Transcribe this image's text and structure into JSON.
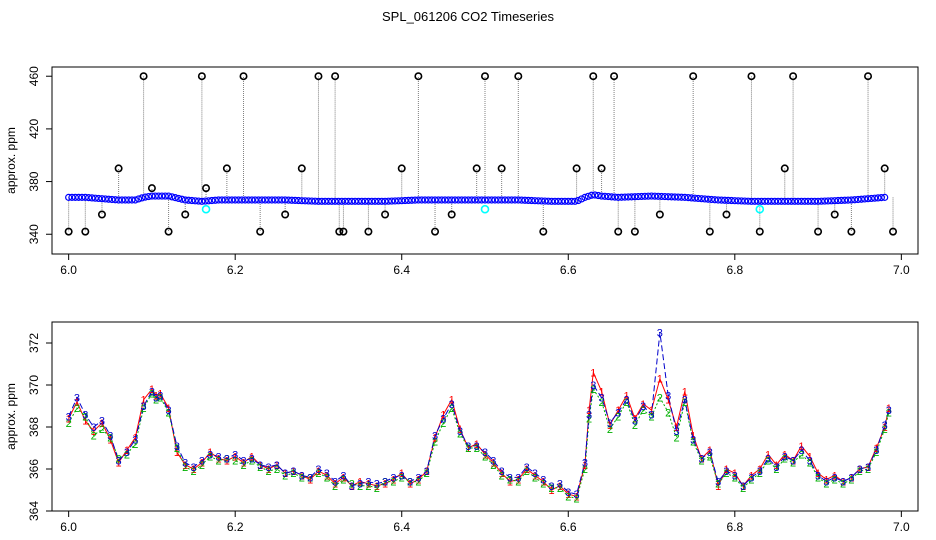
{
  "figure_title": "SPL_061206  CO2 Timeseries",
  "chart_data": [
    {
      "type": "scatter",
      "title": "",
      "xlabel": "",
      "ylabel": "approx. ppm",
      "xlim": [
        5.98,
        7.02
      ],
      "ylim": [
        325,
        467
      ],
      "xticks": [
        "6.0",
        "6.2",
        "6.4",
        "6.6",
        "6.8",
        "7.0"
      ],
      "yticks": [
        "340",
        "380",
        "420",
        "460"
      ],
      "grid": false,
      "colors": {
        "baseline": "#0000ff",
        "outliers": "#000000",
        "flag": "#00ffff",
        "spikes": "#808080"
      },
      "baseline": {
        "x": [
          6.0,
          6.02,
          6.04,
          6.06,
          6.08,
          6.09,
          6.1,
          6.12,
          6.14,
          6.16,
          6.18,
          6.2,
          6.22,
          6.26,
          6.3,
          6.34,
          6.38,
          6.42,
          6.46,
          6.5,
          6.54,
          6.58,
          6.61,
          6.62,
          6.63,
          6.64,
          6.66,
          6.7,
          6.74,
          6.78,
          6.82,
          6.86,
          6.9,
          6.94,
          6.98
        ],
        "y": [
          368,
          368,
          367,
          366,
          366,
          368,
          369,
          369,
          366,
          365,
          366,
          366,
          366,
          366,
          365,
          365,
          365,
          366,
          366,
          366,
          366,
          365,
          365,
          368,
          370,
          369,
          368,
          369,
          368,
          366,
          365,
          365,
          365,
          366,
          368
        ]
      },
      "outliers": {
        "x": [
          6.0,
          6.02,
          6.04,
          6.06,
          6.09,
          6.1,
          6.12,
          6.14,
          6.16,
          6.165,
          6.19,
          6.21,
          6.23,
          6.26,
          6.28,
          6.3,
          6.32,
          6.325,
          6.33,
          6.36,
          6.38,
          6.4,
          6.42,
          6.44,
          6.46,
          6.49,
          6.5,
          6.52,
          6.54,
          6.57,
          6.61,
          6.63,
          6.64,
          6.655,
          6.66,
          6.68,
          6.71,
          6.75,
          6.77,
          6.79,
          6.82,
          6.83,
          6.86,
          6.87,
          6.9,
          6.92,
          6.94,
          6.96,
          6.98,
          6.99
        ],
        "y": [
          342,
          342,
          355,
          390,
          460,
          375,
          342,
          355,
          460,
          375,
          390,
          460,
          342,
          355,
          390,
          460,
          460,
          342,
          342,
          342,
          355,
          390,
          460,
          342,
          355,
          390,
          460,
          390,
          460,
          342,
          390,
          460,
          390,
          460,
          342,
          342,
          355,
          460,
          342,
          355,
          460,
          342,
          390,
          460,
          342,
          355,
          342,
          460,
          390,
          342
        ]
      },
      "flags": {
        "x": [
          6.165,
          6.5,
          6.83
        ],
        "y": [
          359,
          359,
          359
        ]
      }
    },
    {
      "type": "line",
      "title": "",
      "xlabel": "",
      "ylabel": "approx. ppm",
      "xlim": [
        5.98,
        7.02
      ],
      "ylim": [
        364,
        373
      ],
      "xticks": [
        "6.0",
        "6.2",
        "6.4",
        "6.6",
        "6.8",
        "7.0"
      ],
      "yticks": [
        "364",
        "366",
        "368",
        "370",
        "372"
      ],
      "grid": false,
      "point_labels": [
        "1",
        "2",
        "3"
      ],
      "colors": {
        "1": "#ff0000",
        "2": "#00b000",
        "3": "#0000cc"
      },
      "x": [
        6.0,
        6.01,
        6.02,
        6.03,
        6.04,
        6.05,
        6.06,
        6.07,
        6.08,
        6.09,
        6.1,
        6.105,
        6.11,
        6.12,
        6.13,
        6.14,
        6.15,
        6.16,
        6.17,
        6.18,
        6.19,
        6.2,
        6.21,
        6.22,
        6.23,
        6.24,
        6.25,
        6.26,
        6.27,
        6.28,
        6.29,
        6.3,
        6.31,
        6.32,
        6.33,
        6.34,
        6.35,
        6.36,
        6.37,
        6.38,
        6.39,
        6.4,
        6.41,
        6.42,
        6.43,
        6.44,
        6.45,
        6.46,
        6.47,
        6.48,
        6.49,
        6.5,
        6.51,
        6.52,
        6.53,
        6.54,
        6.55,
        6.56,
        6.57,
        6.58,
        6.59,
        6.6,
        6.61,
        6.62,
        6.625,
        6.63,
        6.64,
        6.65,
        6.66,
        6.67,
        6.68,
        6.69,
        6.7,
        6.71,
        6.72,
        6.73,
        6.74,
        6.75,
        6.76,
        6.77,
        6.78,
        6.79,
        6.8,
        6.81,
        6.82,
        6.83,
        6.84,
        6.85,
        6.86,
        6.87,
        6.88,
        6.89,
        6.9,
        6.91,
        6.92,
        6.93,
        6.94,
        6.95,
        6.96,
        6.97,
        6.98,
        6.985
      ],
      "series": [
        {
          "name": "1",
          "values": [
            368.4,
            369.2,
            368.3,
            367.8,
            368.2,
            367.4,
            366.3,
            366.9,
            367.5,
            369.3,
            369.8,
            369.5,
            369.6,
            368.9,
            366.8,
            366.2,
            366.0,
            366.3,
            366.8,
            366.5,
            366.4,
            366.6,
            366.3,
            366.6,
            366.2,
            366.0,
            366.2,
            365.8,
            365.9,
            365.7,
            365.5,
            365.9,
            365.7,
            365.3,
            365.6,
            365.2,
            365.4,
            365.3,
            365.2,
            365.3,
            365.5,
            365.8,
            365.3,
            365.5,
            365.9,
            367.5,
            368.6,
            369.3,
            367.9,
            367.0,
            367.2,
            366.7,
            366.3,
            365.8,
            365.4,
            365.5,
            366.0,
            365.7,
            365.4,
            365.0,
            365.2,
            364.8,
            364.7,
            366.2,
            368.8,
            370.6,
            369.7,
            368.1,
            368.8,
            369.5,
            368.4,
            369.1,
            368.8,
            370.3,
            369.3,
            368.0,
            369.7,
            367.6,
            366.5,
            366.9,
            365.2,
            366.0,
            365.8,
            365.2,
            365.7,
            366.0,
            366.7,
            366.2,
            366.7,
            366.4,
            367.1,
            366.6,
            365.8,
            365.5,
            365.7,
            365.4,
            365.6,
            366.0,
            366.1,
            367.0,
            368.0,
            368.9
          ]
        },
        {
          "name": "2",
          "values": [
            368.2,
            368.9,
            368.5,
            367.6,
            367.9,
            367.5,
            366.5,
            366.7,
            367.2,
            368.9,
            369.6,
            369.3,
            369.4,
            368.7,
            367.0,
            366.1,
            365.9,
            366.2,
            366.6,
            366.4,
            366.5,
            366.4,
            366.2,
            366.4,
            366.1,
            365.9,
            366.0,
            365.7,
            365.8,
            365.6,
            365.6,
            365.8,
            365.6,
            365.2,
            365.5,
            365.3,
            365.2,
            365.2,
            365.1,
            365.4,
            365.4,
            365.6,
            365.4,
            365.4,
            365.8,
            367.3,
            368.2,
            368.9,
            367.7,
            367.0,
            367.0,
            366.6,
            366.2,
            365.7,
            365.5,
            365.4,
            365.9,
            365.6,
            365.3,
            365.1,
            365.1,
            364.7,
            364.6,
            366.0,
            368.4,
            369.8,
            369.2,
            367.9,
            368.5,
            369.2,
            368.1,
            368.8,
            368.5,
            369.4,
            368.7,
            367.5,
            369.2,
            367.3,
            366.4,
            366.6,
            365.3,
            365.8,
            365.6,
            365.1,
            365.5,
            365.8,
            366.4,
            366.0,
            366.5,
            366.3,
            366.7,
            366.3,
            365.6,
            365.3,
            365.5,
            365.3,
            365.5,
            365.9,
            366.0,
            366.8,
            367.9,
            368.7
          ]
        },
        {
          "name": "3",
          "values": [
            368.5,
            369.4,
            368.6,
            368.0,
            368.3,
            367.6,
            366.4,
            366.8,
            367.4,
            369.0,
            369.7,
            369.4,
            369.5,
            368.8,
            367.1,
            366.3,
            366.1,
            366.4,
            366.7,
            366.6,
            366.5,
            366.7,
            366.4,
            366.5,
            366.2,
            366.1,
            366.2,
            365.8,
            365.9,
            365.7,
            365.6,
            366.0,
            365.8,
            365.4,
            365.7,
            365.2,
            365.3,
            365.4,
            365.3,
            365.4,
            365.6,
            365.7,
            365.4,
            365.6,
            365.9,
            367.6,
            368.4,
            369.1,
            367.8,
            367.1,
            367.1,
            366.8,
            366.4,
            365.9,
            365.6,
            365.6,
            366.1,
            365.8,
            365.5,
            365.2,
            365.3,
            364.9,
            364.8,
            366.3,
            368.6,
            370.0,
            369.4,
            368.2,
            368.7,
            369.3,
            368.3,
            369.0,
            368.6,
            372.5,
            369.5,
            367.8,
            369.3,
            367.4,
            366.5,
            366.8,
            365.4,
            365.9,
            365.7,
            365.2,
            365.6,
            365.9,
            366.5,
            366.1,
            366.6,
            366.4,
            366.9,
            366.4,
            365.7,
            365.4,
            365.6,
            365.4,
            365.6,
            366.0,
            366.1,
            366.9,
            368.1,
            368.8
          ]
        }
      ]
    }
  ]
}
